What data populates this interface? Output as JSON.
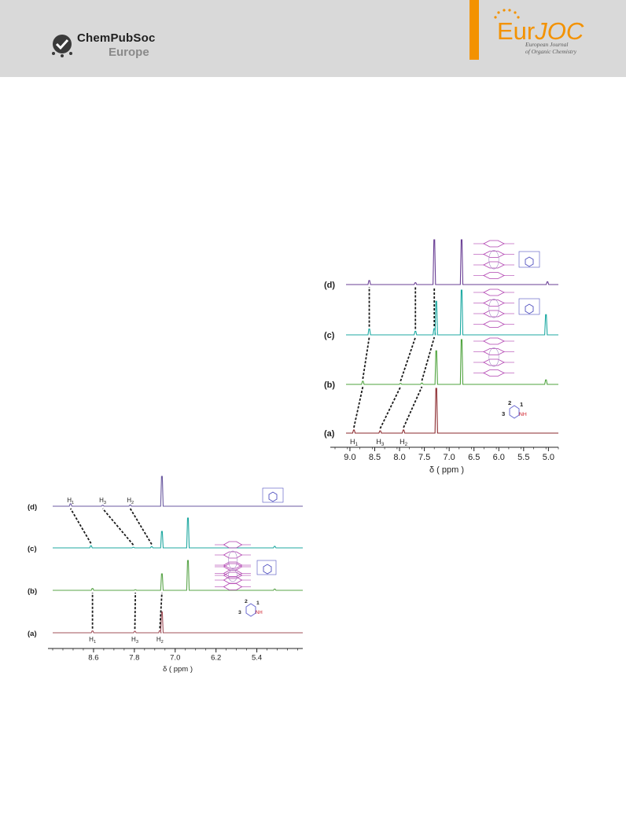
{
  "header": {
    "publisher_line1": "ChemPubSoc",
    "publisher_line2": "Europe",
    "journal_name_a": "Eur",
    "journal_name_b": "JOC",
    "journal_sub_line1": "European Journal",
    "journal_sub_line2": "of Organic Chemistry",
    "colors": {
      "band": "#d9d9d9",
      "accent": "#f39200"
    }
  },
  "chart_data": [
    {
      "type": "line",
      "xlabel": "δ ( ppm )",
      "xlim": [
        9.3,
        4.8
      ],
      "x_ticks": [
        9.0,
        8.5,
        8.0,
        7.5,
        7.0,
        6.5,
        6.0,
        5.5,
        5.0
      ],
      "x_tick_labels": [
        "9.0",
        "8.5",
        "8.0",
        "7.5",
        "7.0",
        "6.5",
        "6.0",
        "5.5",
        "5.0"
      ],
      "series": [
        {
          "name": "(a)",
          "color": "#8b2a2e",
          "peaks": [
            {
              "x": 8.92,
              "h": 0.07
            },
            {
              "x": 8.39,
              "h": 0.05
            },
            {
              "x": 7.92,
              "h": 0.07
            },
            {
              "x": 7.26,
              "h": 1.0
            }
          ]
        },
        {
          "name": "(b)",
          "color": "#4fa33e",
          "peaks": [
            {
              "x": 8.74,
              "h": 0.07
            },
            {
              "x": 7.98,
              "h": 0.02
            },
            {
              "x": 7.55,
              "h": 0.03
            },
            {
              "x": 7.26,
              "h": 0.75
            },
            {
              "x": 6.75,
              "h": 1.0
            },
            {
              "x": 5.05,
              "h": 0.1
            }
          ]
        },
        {
          "name": "(c)",
          "color": "#1ca9a2",
          "peaks": [
            {
              "x": 8.61,
              "h": 0.13
            },
            {
              "x": 7.68,
              "h": 0.08
            },
            {
              "x": 7.3,
              "h": 0.14
            },
            {
              "x": 7.26,
              "h": 0.75
            },
            {
              "x": 6.75,
              "h": 1.0
            },
            {
              "x": 5.05,
              "h": 0.45
            }
          ]
        },
        {
          "name": "(d)",
          "color": "#6a3f95",
          "peaks": [
            {
              "x": 8.61,
              "h": 0.09
            },
            {
              "x": 7.68,
              "h": 0.04
            },
            {
              "x": 7.3,
              "h": 1.0
            },
            {
              "x": 6.75,
              "h": 1.0
            },
            {
              "x": 5.02,
              "h": 0.06
            }
          ]
        }
      ],
      "annotations": [
        {
          "label": "H",
          "sub": "1",
          "x": 8.92
        },
        {
          "label": "H",
          "sub": "3",
          "x": 8.39
        },
        {
          "label": "H",
          "sub": "2",
          "x": 7.92
        }
      ],
      "structure_labels": [
        "2",
        "1",
        "3",
        "NH"
      ]
    },
    {
      "type": "line",
      "xlabel": "δ ( ppm )",
      "xlim": [
        9.4,
        4.5
      ],
      "x_ticks": [
        8.6,
        7.8,
        7.0,
        6.2,
        5.4
      ],
      "x_tick_labels": [
        "8.6",
        "7.8",
        "7.0",
        "6.2",
        "5.4"
      ],
      "series": [
        {
          "name": "(a)",
          "color": "#a0505a",
          "peaks": [
            {
              "x": 8.62,
              "h": 0.06
            },
            {
              "x": 7.79,
              "h": 0.05
            },
            {
              "x": 7.3,
              "h": 0.07
            },
            {
              "x": 7.26,
              "h": 0.7
            }
          ]
        },
        {
          "name": "(b)",
          "color": "#5aa54a",
          "peaks": [
            {
              "x": 8.62,
              "h": 0.06
            },
            {
              "x": 7.78,
              "h": 0.02
            },
            {
              "x": 7.26,
              "h": 0.55
            },
            {
              "x": 6.75,
              "h": 1.0
            },
            {
              "x": 5.05,
              "h": 0.04
            }
          ]
        },
        {
          "name": "(c)",
          "color": "#1fa8a0",
          "peaks": [
            {
              "x": 8.65,
              "h": 0.07
            },
            {
              "x": 7.82,
              "h": 0.02
            },
            {
              "x": 7.46,
              "h": 0.04
            },
            {
              "x": 7.26,
              "h": 0.55
            },
            {
              "x": 6.75,
              "h": 1.0
            },
            {
              "x": 5.05,
              "h": 0.05
            }
          ]
        },
        {
          "name": "(d)",
          "color": "#6b5aa0",
          "peaks": [
            {
              "x": 9.05,
              "h": 0.08
            },
            {
              "x": 8.42,
              "h": 0.03
            },
            {
              "x": 7.88,
              "h": 0.04
            },
            {
              "x": 7.26,
              "h": 1.0
            }
          ]
        }
      ],
      "annotations": [
        {
          "label": "H",
          "sub": "1",
          "x": 9.05
        },
        {
          "label": "H",
          "sub": "3",
          "x": 8.42
        },
        {
          "label": "H",
          "sub": "2",
          "x": 7.88
        }
      ],
      "bottom_annotations": [
        {
          "label": "H",
          "sub": "1",
          "x": 8.62
        },
        {
          "label": "H",
          "sub": "3",
          "x": 7.79
        },
        {
          "label": "H",
          "sub": "2",
          "x": 7.3
        }
      ],
      "structure_labels": [
        "2",
        "1",
        "3",
        "NH"
      ]
    }
  ]
}
